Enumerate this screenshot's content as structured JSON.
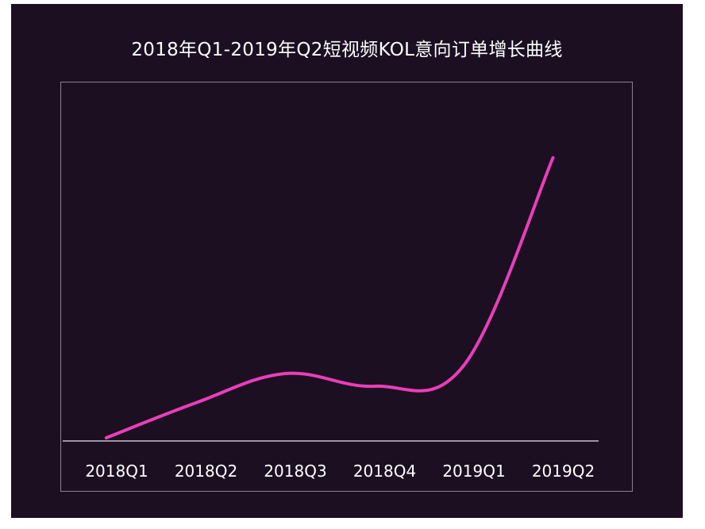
{
  "chart_data": {
    "type": "line",
    "title": "2018年Q1-2019年Q2短视频KOL意向订单增长曲线",
    "categories": [
      "2018Q1",
      "2018Q2",
      "2018Q3",
      "2018Q4",
      "2019Q1",
      "2019Q2"
    ],
    "series": [
      {
        "values": [
          2,
          46,
          83,
          67,
          93,
          355
        ]
      }
    ],
    "ylim": [
      0,
      380
    ],
    "grid": false,
    "smooth": true,
    "line_color": "#e83fb8",
    "axis_color": "#c9c2d2",
    "background_color": "#1c0f22"
  }
}
